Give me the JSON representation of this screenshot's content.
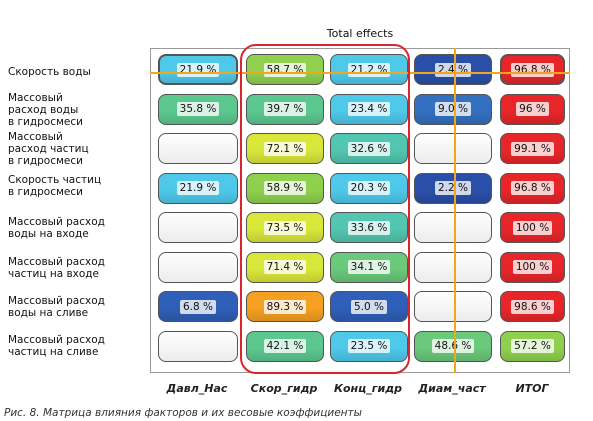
{
  "chart_data": {
    "type": "heatmap",
    "title": "Total effects",
    "rows": [
      "Скорость воды",
      "Массовый\nрасход воды\nв гидросмеси",
      "Массовый\nрасход частиц\nв гидросмеси",
      "Скорость частиц\nв гидросмеси",
      "Массовый расход\nводы на входе",
      "Массовый расход\nчастиц на входе",
      "Массовый расход\nводы на сливе",
      "Массовый расход\nчастиц на сливе"
    ],
    "columns": [
      "Давл_Нас",
      "Скор_гидр",
      "Конц_гидр",
      "Диам_част",
      "ИТОГ"
    ],
    "cells": [
      [
        {
          "label": "21.9 %",
          "color": "#4ec9ea"
        },
        {
          "label": "58.7 %",
          "color": "#8fd14f"
        },
        {
          "label": "21.2 %",
          "color": "#4ec9ea"
        },
        {
          "label": "2.4 %",
          "color": "#2a4fa8"
        },
        {
          "label": "96.8 %",
          "color": "#e8262a"
        }
      ],
      [
        {
          "label": "35.8 %",
          "color": "#5cc890"
        },
        {
          "label": "39.7 %",
          "color": "#5cc890"
        },
        {
          "label": "23.4 %",
          "color": "#4ec9ea"
        },
        {
          "label": "9.0 %",
          "color": "#3470c0"
        },
        {
          "label": "96 %",
          "color": "#e8262a"
        }
      ],
      [
        {
          "label": "",
          "color": "#ffffff"
        },
        {
          "label": "72.1 %",
          "color": "#d9e63a"
        },
        {
          "label": "32.6 %",
          "color": "#52c6b0"
        },
        {
          "label": "",
          "color": "#ffffff"
        },
        {
          "label": "99.1 %",
          "color": "#e8262a"
        }
      ],
      [
        {
          "label": "21.9 %",
          "color": "#4ec9ea"
        },
        {
          "label": "58.9 %",
          "color": "#8fd14f"
        },
        {
          "label": "20.3 %",
          "color": "#4ec9ea"
        },
        {
          "label": "2.2 %",
          "color": "#2a4fa8"
        },
        {
          "label": "96.8 %",
          "color": "#e8262a"
        }
      ],
      [
        {
          "label": "",
          "color": "#ffffff"
        },
        {
          "label": "73.5 %",
          "color": "#d9e63a"
        },
        {
          "label": "33.6 %",
          "color": "#52c6b0"
        },
        {
          "label": "",
          "color": "#ffffff"
        },
        {
          "label": "100 %",
          "color": "#e8262a"
        }
      ],
      [
        {
          "label": "",
          "color": "#ffffff"
        },
        {
          "label": "71.4 %",
          "color": "#d9e63a"
        },
        {
          "label": "34.1 %",
          "color": "#6ac97a"
        },
        {
          "label": "",
          "color": "#ffffff"
        },
        {
          "label": "100 %",
          "color": "#e8262a"
        }
      ],
      [
        {
          "label": "6.8 %",
          "color": "#2f5fb8"
        },
        {
          "label": "89.3 %",
          "color": "#f5a020"
        },
        {
          "label": "5.0 %",
          "color": "#2f5fb8"
        },
        {
          "label": "",
          "color": "#ffffff"
        },
        {
          "label": "98.6 %",
          "color": "#e8262a"
        }
      ],
      [
        {
          "label": "",
          "color": "#ffffff"
        },
        {
          "label": "42.1 %",
          "color": "#5cc890"
        },
        {
          "label": "23.5 %",
          "color": "#4ec9ea"
        },
        {
          "label": "48.6 %",
          "color": "#6ac97a"
        },
        {
          "label": "57.2 %",
          "color": "#8fd14f"
        }
      ]
    ]
  },
  "caption": "Рис. 8. Матрица влияния факторов и их весовые коэффициенты"
}
